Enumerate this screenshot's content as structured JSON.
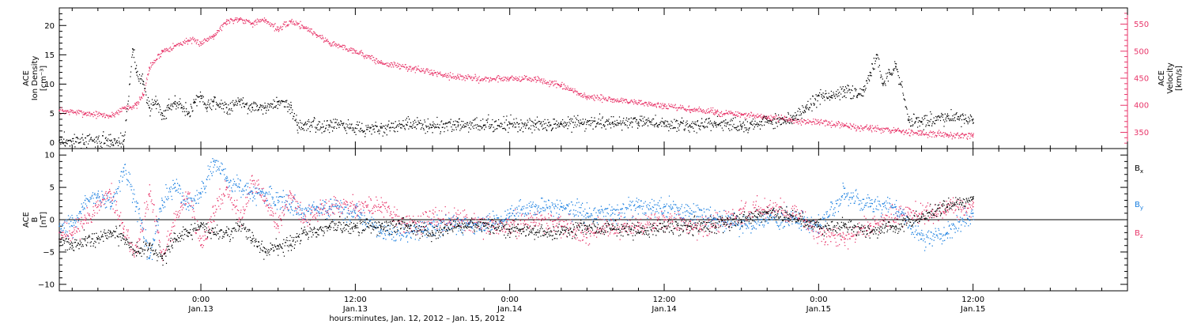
{
  "chart_data": [
    {
      "type": "scatter",
      "panel": "top",
      "ylabel_left": [
        "ACE",
        "Ion Density",
        "[cm⁻³]"
      ],
      "ylabel_right": [
        "ACE",
        "Velocity",
        "[km/s]"
      ],
      "ylim_left": [
        -1,
        23
      ],
      "yticks_left": [
        "0",
        "5",
        "10",
        "15",
        "20"
      ],
      "ylim_right": [
        320,
        580
      ],
      "yticks_right": [
        "350",
        "400",
        "450",
        "500",
        "550"
      ],
      "colors": {
        "density": "#000000",
        "velocity": "#e8366a"
      },
      "series": [
        {
          "color_key": "density",
          "axis": "left",
          "x": [
            -11,
            -7,
            -6,
            -5.3,
            -5,
            -4.5,
            -4,
            -3.5,
            -3,
            -2.5,
            -2,
            -1.5,
            -1,
            -0.5,
            0,
            0.5,
            1,
            2,
            3,
            4,
            5,
            6,
            7,
            7.5,
            8,
            10,
            12,
            14,
            16,
            18,
            20,
            22,
            24,
            26,
            28,
            30,
            32,
            34,
            36,
            38,
            40,
            42,
            44,
            46,
            47,
            48,
            49,
            50,
            51,
            51.5,
            52,
            52.5,
            53,
            53.5,
            54,
            55,
            56,
            58,
            60
          ],
          "y": [
            0.3,
            0.3,
            0.3,
            16,
            12,
            10,
            6,
            7,
            5,
            6,
            7,
            6,
            5,
            7,
            8,
            6,
            7,
            6,
            7,
            6,
            6,
            7,
            6,
            3,
            3,
            3,
            2.5,
            2.5,
            3,
            3,
            3,
            3,
            3.2,
            3.2,
            3.2,
            3.5,
            3.5,
            3.5,
            3.2,
            3,
            3,
            2.8,
            3.5,
            4,
            6,
            8,
            8,
            9,
            8,
            9,
            12,
            15,
            10,
            12,
            13,
            3.8,
            3.5,
            4.5,
            4
          ]
        },
        {
          "color_key": "velocity",
          "axis": "right",
          "x": [
            -11,
            -9,
            -7,
            -6,
            -5,
            -4.5,
            -4,
            -3,
            -2,
            -1,
            0,
            1,
            2,
            3,
            4,
            5,
            6,
            7,
            8,
            9,
            10,
            12,
            14,
            16,
            18,
            20,
            22,
            24,
            26,
            28,
            30,
            32,
            34,
            36,
            38,
            40,
            42,
            44,
            46,
            48,
            50,
            52,
            54,
            56,
            58,
            60
          ],
          "y": [
            390,
            385,
            380,
            395,
            400,
            420,
            470,
            500,
            510,
            520,
            515,
            530,
            555,
            560,
            552,
            557,
            540,
            555,
            545,
            530,
            515,
            500,
            478,
            470,
            460,
            452,
            448,
            450,
            448,
            435,
            415,
            410,
            405,
            398,
            392,
            387,
            382,
            377,
            372,
            368,
            362,
            357,
            352,
            348,
            345,
            345
          ]
        }
      ]
    },
    {
      "type": "scatter",
      "panel": "bottom",
      "ylabel": [
        "ACE",
        "B",
        "[nT]"
      ],
      "ylim": [
        -11,
        11
      ],
      "yticks": [
        "−10",
        "−5",
        "0",
        "5",
        "10"
      ],
      "zero_line": true,
      "colors": {
        "Bx": "#000000",
        "By": "#1a7fe0",
        "Bz": "#e8366a"
      },
      "legend": [
        {
          "base": "B",
          "sub": "x",
          "color_key": "Bx"
        },
        {
          "base": "B",
          "sub": "y",
          "color_key": "By"
        },
        {
          "base": "B",
          "sub": "z",
          "color_key": "Bz"
        }
      ],
      "series": [
        {
          "color_key": "Bx",
          "x": [
            -11,
            -10,
            -9,
            -8,
            -7,
            -6,
            -5,
            -4,
            -3,
            -2,
            -1,
            0,
            1,
            2,
            3,
            4,
            5,
            6,
            7,
            8,
            9,
            10,
            12,
            14,
            16,
            18,
            20,
            22,
            24,
            26,
            28,
            30,
            32,
            34,
            36,
            38,
            40,
            42,
            44,
            46,
            48,
            50,
            52,
            54,
            56,
            58,
            60
          ],
          "y": [
            -3,
            -4,
            -3,
            -3,
            -2,
            -3,
            -5,
            -4,
            -6,
            -3,
            -2,
            -1,
            -2,
            -2,
            -1,
            -3,
            -5,
            -4,
            -4,
            -2,
            -2,
            -1,
            -1,
            -1,
            -1,
            -2,
            -1,
            -1,
            -1.5,
            -2,
            -2,
            -1,
            -1.5,
            -2,
            -1,
            -1,
            -1,
            0,
            1,
            0.5,
            -1,
            -1,
            -2,
            -1,
            0.5,
            2,
            3.2
          ]
        },
        {
          "color_key": "By",
          "x": [
            -11,
            -10,
            -9,
            -8,
            -7,
            -6,
            -5,
            -4,
            -3,
            -2,
            -1,
            0,
            1,
            2,
            3,
            4,
            5,
            6,
            7,
            8,
            9,
            10,
            12,
            14,
            16,
            18,
            20,
            22,
            24,
            26,
            28,
            30,
            32,
            34,
            36,
            38,
            40,
            42,
            44,
            46,
            48,
            50,
            52,
            54,
            56,
            58,
            60
          ],
          "y": [
            -1,
            -1,
            3,
            4,
            2,
            8,
            2,
            -6,
            3,
            5,
            2,
            4,
            9,
            6,
            5,
            4,
            4,
            3,
            2,
            1,
            2,
            2,
            1,
            -2,
            -2,
            -1,
            -1,
            -1,
            1,
            2,
            2,
            1,
            1,
            2,
            2,
            1,
            0,
            -1,
            0,
            0,
            -1,
            4,
            2,
            2,
            -3,
            -2,
            1
          ]
        },
        {
          "color_key": "Bz",
          "x": [
            -11,
            -10,
            -9,
            -8,
            -7,
            -6,
            -5,
            -4,
            -3,
            -2,
            -1,
            0,
            1,
            2,
            3,
            4,
            5,
            6,
            7,
            8,
            9,
            10,
            12,
            14,
            16,
            18,
            20,
            22,
            24,
            26,
            28,
            30,
            32,
            34,
            36,
            38,
            40,
            42,
            44,
            46,
            48,
            50,
            52,
            54,
            56,
            58,
            60
          ],
          "y": [
            -2,
            -2,
            0,
            2,
            4,
            -2,
            -5,
            4,
            -6,
            0,
            4,
            -4,
            1,
            5,
            0,
            6,
            3,
            -1,
            4,
            0,
            1,
            2,
            2,
            2,
            -1,
            0,
            0,
            -1,
            -1,
            0,
            -1,
            -2,
            -1,
            -1,
            0,
            -1,
            -1,
            1,
            2,
            1,
            -2,
            -3,
            -1,
            1,
            1,
            1.5,
            2
          ]
        }
      ]
    }
  ],
  "xaxis": {
    "xlim": [
      -11,
      72
    ],
    "ticks": [
      {
        "x": 0,
        "time": "0:00",
        "date": "Jan.13"
      },
      {
        "x": 12,
        "time": "12:00",
        "date": "Jan.13"
      },
      {
        "x": 24,
        "time": "0:00",
        "date": "Jan.14"
      },
      {
        "x": 36,
        "time": "12:00",
        "date": "Jan.14"
      },
      {
        "x": 48,
        "time": "0:00",
        "date": "Jan.15"
      },
      {
        "x": 60,
        "time": "12:00",
        "date": "Jan.15"
      }
    ],
    "label": "hours:minutes, Jan. 12, 2012 – Jan. 15, 2012"
  }
}
